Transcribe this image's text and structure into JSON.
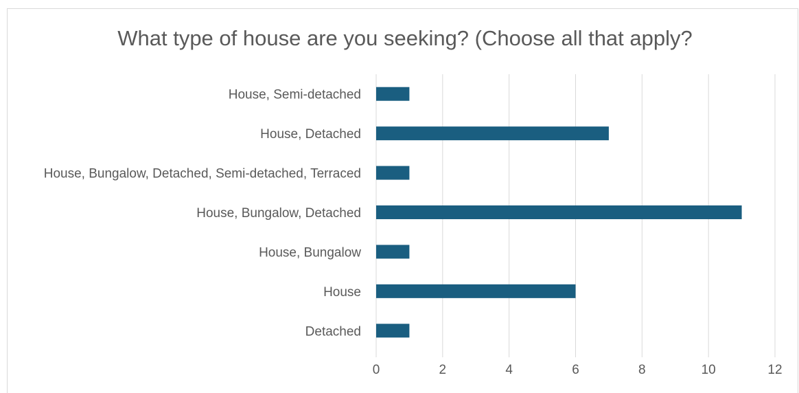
{
  "chart_data": {
    "type": "bar",
    "orientation": "horizontal",
    "title": "What type of house are you seeking? (Choose all that apply?",
    "categories": [
      "House, Semi-detached",
      "House, Detached",
      "House, Bungalow, Detached, Semi-detached, Terraced",
      "House, Bungalow, Detached",
      "House, Bungalow",
      "House",
      "Detached"
    ],
    "values": [
      1,
      7,
      1,
      11,
      1,
      6,
      1
    ],
    "xlim": [
      0,
      12
    ],
    "xticks": [
      0,
      2,
      4,
      6,
      8,
      10,
      12
    ],
    "xlabel": "",
    "ylabel": "",
    "grid": "vertical",
    "legend": "none",
    "bar_color": "#1a5e80"
  }
}
